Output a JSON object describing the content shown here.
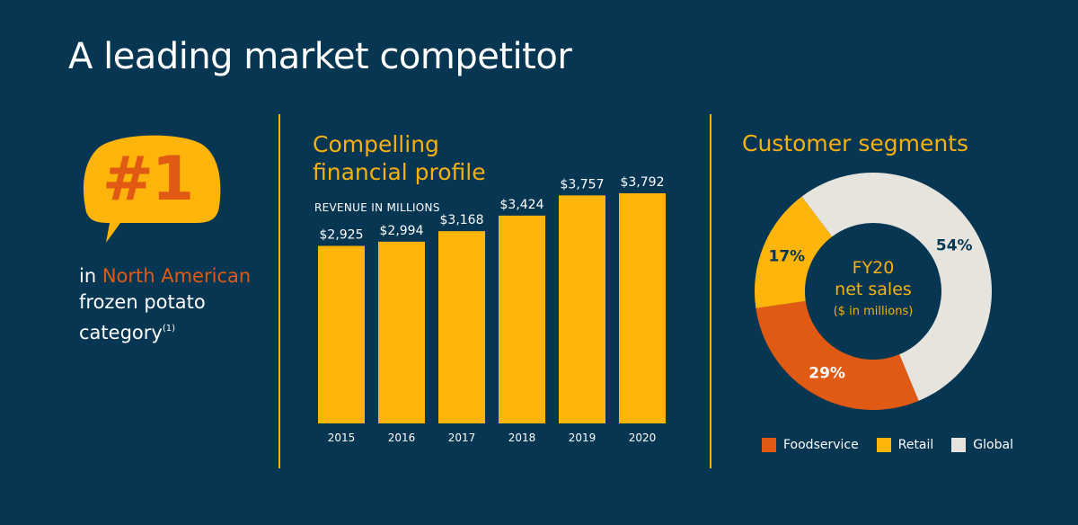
{
  "title": "A leading market competitor",
  "ranking": {
    "badge": "#1",
    "line1_prefix": "in ",
    "line1_highlight": "North American",
    "line2": "frozen potato",
    "line3": "category",
    "footnote": "(1)"
  },
  "colors": {
    "background": "#073652",
    "accent_yellow": "#f6b010",
    "bar_yellow": "#fdb40b",
    "orange": "#e05a14",
    "global_grey": "#e6e4dd",
    "white": "#ffffff"
  },
  "revenue_panel": {
    "heading_line1": "Compelling",
    "heading_line2": "financial profile",
    "subheading": "REVENUE IN MILLIONS"
  },
  "segments_panel": {
    "heading": "Customer segments",
    "center_line1": "FY20",
    "center_line2": "net sales",
    "center_line3": "($ in millions)"
  },
  "chart_data": [
    {
      "type": "bar",
      "title": "REVENUE IN MILLIONS",
      "categories": [
        "2015",
        "2016",
        "2017",
        "2018",
        "2019",
        "2020"
      ],
      "values": [
        2925,
        2994,
        3168,
        3424,
        3757,
        3792
      ],
      "data_labels": [
        "$2,925",
        "$2,994",
        "$3,168",
        "$3,424",
        "$3,757",
        "$3,792"
      ],
      "color": "#fdb40b"
    },
    {
      "type": "pie",
      "title": "FY20 net sales ($ in millions)",
      "donut": true,
      "labels": [
        "Foodservice",
        "Retail",
        "Global"
      ],
      "values": [
        29,
        17,
        54
      ],
      "data_labels": [
        "29%",
        "17%",
        "54%"
      ],
      "colors": [
        "#e05a14",
        "#fdb40b",
        "#e6e4dd"
      ],
      "legend": "bottom"
    }
  ]
}
